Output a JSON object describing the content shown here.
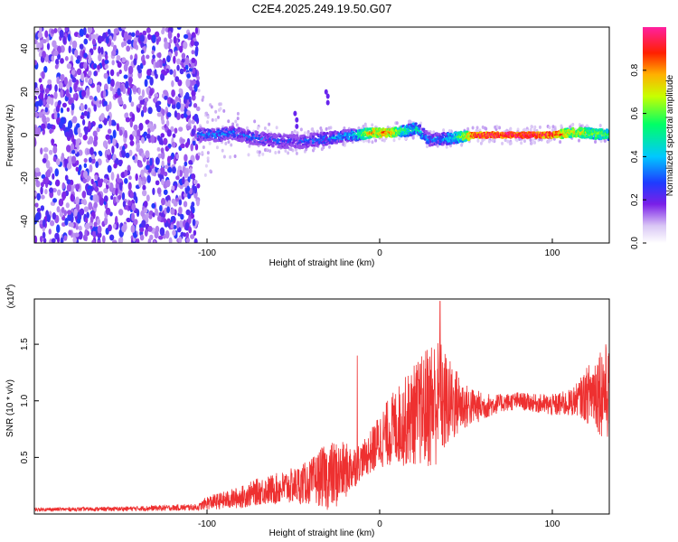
{
  "title": "C2E4.2025.249.19.50.G07",
  "chart_data": [
    {
      "type": "heatmap",
      "name": "spectrogram",
      "xlabel": "Height of straight line (km)",
      "ylabel": "Frequency (Hz)",
      "xlim": [
        -200,
        133
      ],
      "ylim": [
        -50,
        50
      ],
      "xticks": [
        -100,
        0,
        100
      ],
      "xtick_labels": [
        "-100",
        "0",
        "100"
      ],
      "yticks": [
        -40,
        -20,
        0,
        20,
        40
      ],
      "ytick_labels": [
        "-40",
        "-20",
        "0",
        "20",
        "40"
      ],
      "noise_region_x": [
        -200,
        -105
      ],
      "signal_trace": {
        "x": [
          -105,
          -95,
          -85,
          -75,
          -65,
          -55,
          -45,
          -35,
          -25,
          -15,
          -5,
          5,
          15,
          22,
          28,
          35,
          45,
          55,
          70,
          85,
          100,
          110,
          120,
          133
        ],
        "freq": [
          0,
          0,
          1,
          -1,
          -2,
          -3,
          -3,
          -2,
          -1,
          0,
          1,
          1,
          2,
          3,
          -2,
          -2,
          -1,
          0,
          0,
          0,
          0,
          1,
          1,
          0
        ],
        "amp": [
          0.3,
          0.32,
          0.3,
          0.28,
          0.27,
          0.25,
          0.26,
          0.3,
          0.35,
          0.4,
          0.75,
          0.8,
          0.5,
          0.45,
          0.3,
          0.35,
          0.5,
          0.9,
          0.95,
          0.95,
          0.9,
          0.7,
          0.65,
          0.55
        ]
      },
      "colorbar": {
        "label": "Normalized spectral amplitude",
        "range": [
          0,
          1
        ],
        "ticks": [
          0.0,
          0.2,
          0.4,
          0.6,
          0.8
        ],
        "tick_labels": [
          "0.0",
          "0.2",
          "0.4",
          "0.6",
          "0.8"
        ]
      }
    },
    {
      "type": "line",
      "name": "snr",
      "xlabel": "Height of straight line (km)",
      "ylabel": "SNR (10 * v/v)",
      "y_multiplier": "(x10",
      "y_multiplier_exp": "4",
      "y_multiplier_close": ")",
      "xlim": [
        -200,
        133
      ],
      "ylim": [
        0,
        1.9
      ],
      "xticks": [
        -100,
        0,
        100
      ],
      "xtick_labels": [
        "-100",
        "0",
        "100"
      ],
      "yticks": [
        0.5,
        1.0,
        1.5
      ],
      "ytick_labels": [
        "0.5",
        "1.0",
        "1.5"
      ],
      "color": "#ee3030",
      "envelope": {
        "x": [
          -200,
          -150,
          -105,
          -100,
          -90,
          -80,
          -70,
          -60,
          -50,
          -40,
          -35,
          -30,
          -25,
          -20,
          -15,
          -10,
          -5,
          0,
          5,
          10,
          15,
          20,
          25,
          30,
          35,
          40,
          45,
          50,
          60,
          70,
          80,
          90,
          100,
          110,
          115,
          120,
          125,
          130,
          133
        ],
        "mean": [
          0.04,
          0.045,
          0.06,
          0.1,
          0.12,
          0.15,
          0.2,
          0.22,
          0.25,
          0.28,
          0.32,
          0.33,
          0.35,
          0.38,
          0.42,
          0.48,
          0.55,
          0.65,
          0.72,
          0.78,
          0.82,
          0.88,
          0.92,
          0.98,
          1.0,
          0.98,
          0.98,
          0.95,
          0.95,
          0.98,
          1.0,
          0.98,
          0.96,
          0.98,
          1.02,
          1.05,
          1.1,
          1.1,
          1.05
        ],
        "amp": [
          0.015,
          0.02,
          0.03,
          0.06,
          0.08,
          0.1,
          0.12,
          0.14,
          0.16,
          0.2,
          0.25,
          0.3,
          0.3,
          0.25,
          0.2,
          0.15,
          0.2,
          0.25,
          0.3,
          0.35,
          0.4,
          0.45,
          0.5,
          0.6,
          0.55,
          0.4,
          0.3,
          0.2,
          0.12,
          0.08,
          0.08,
          0.08,
          0.1,
          0.12,
          0.15,
          0.25,
          0.35,
          0.45,
          0.4
        ]
      },
      "spike": {
        "x": -13,
        "y": 1.4
      },
      "peak": {
        "x": 35,
        "y": 1.88
      }
    }
  ]
}
